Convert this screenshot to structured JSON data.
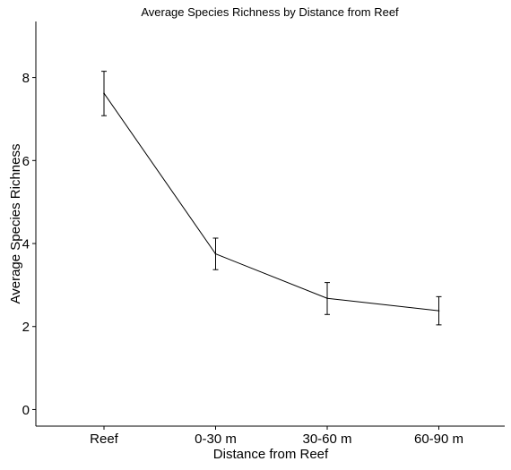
{
  "chart_data": {
    "type": "line",
    "title": "Average Species Richness by Distance from Reef",
    "xlabel": "Distance from Reef",
    "ylabel": "Average Species Richness",
    "categories": [
      "Reef",
      "0-30 m",
      "30-60 m",
      "60-90 m"
    ],
    "series": [
      {
        "values": [
          7.62,
          3.75,
          2.68,
          2.38
        ],
        "error_low": [
          7.08,
          3.37,
          2.29,
          2.04
        ],
        "error_high": [
          8.15,
          4.13,
          3.06,
          2.72
        ]
      }
    ],
    "yticks": [
      0,
      2,
      4,
      6,
      8
    ],
    "ytick_labels": [
      "0",
      "2",
      "4",
      "6",
      "8"
    ],
    "ylim": [
      -0.4,
      9.35
    ],
    "grid": false,
    "line_color": "#000000"
  }
}
